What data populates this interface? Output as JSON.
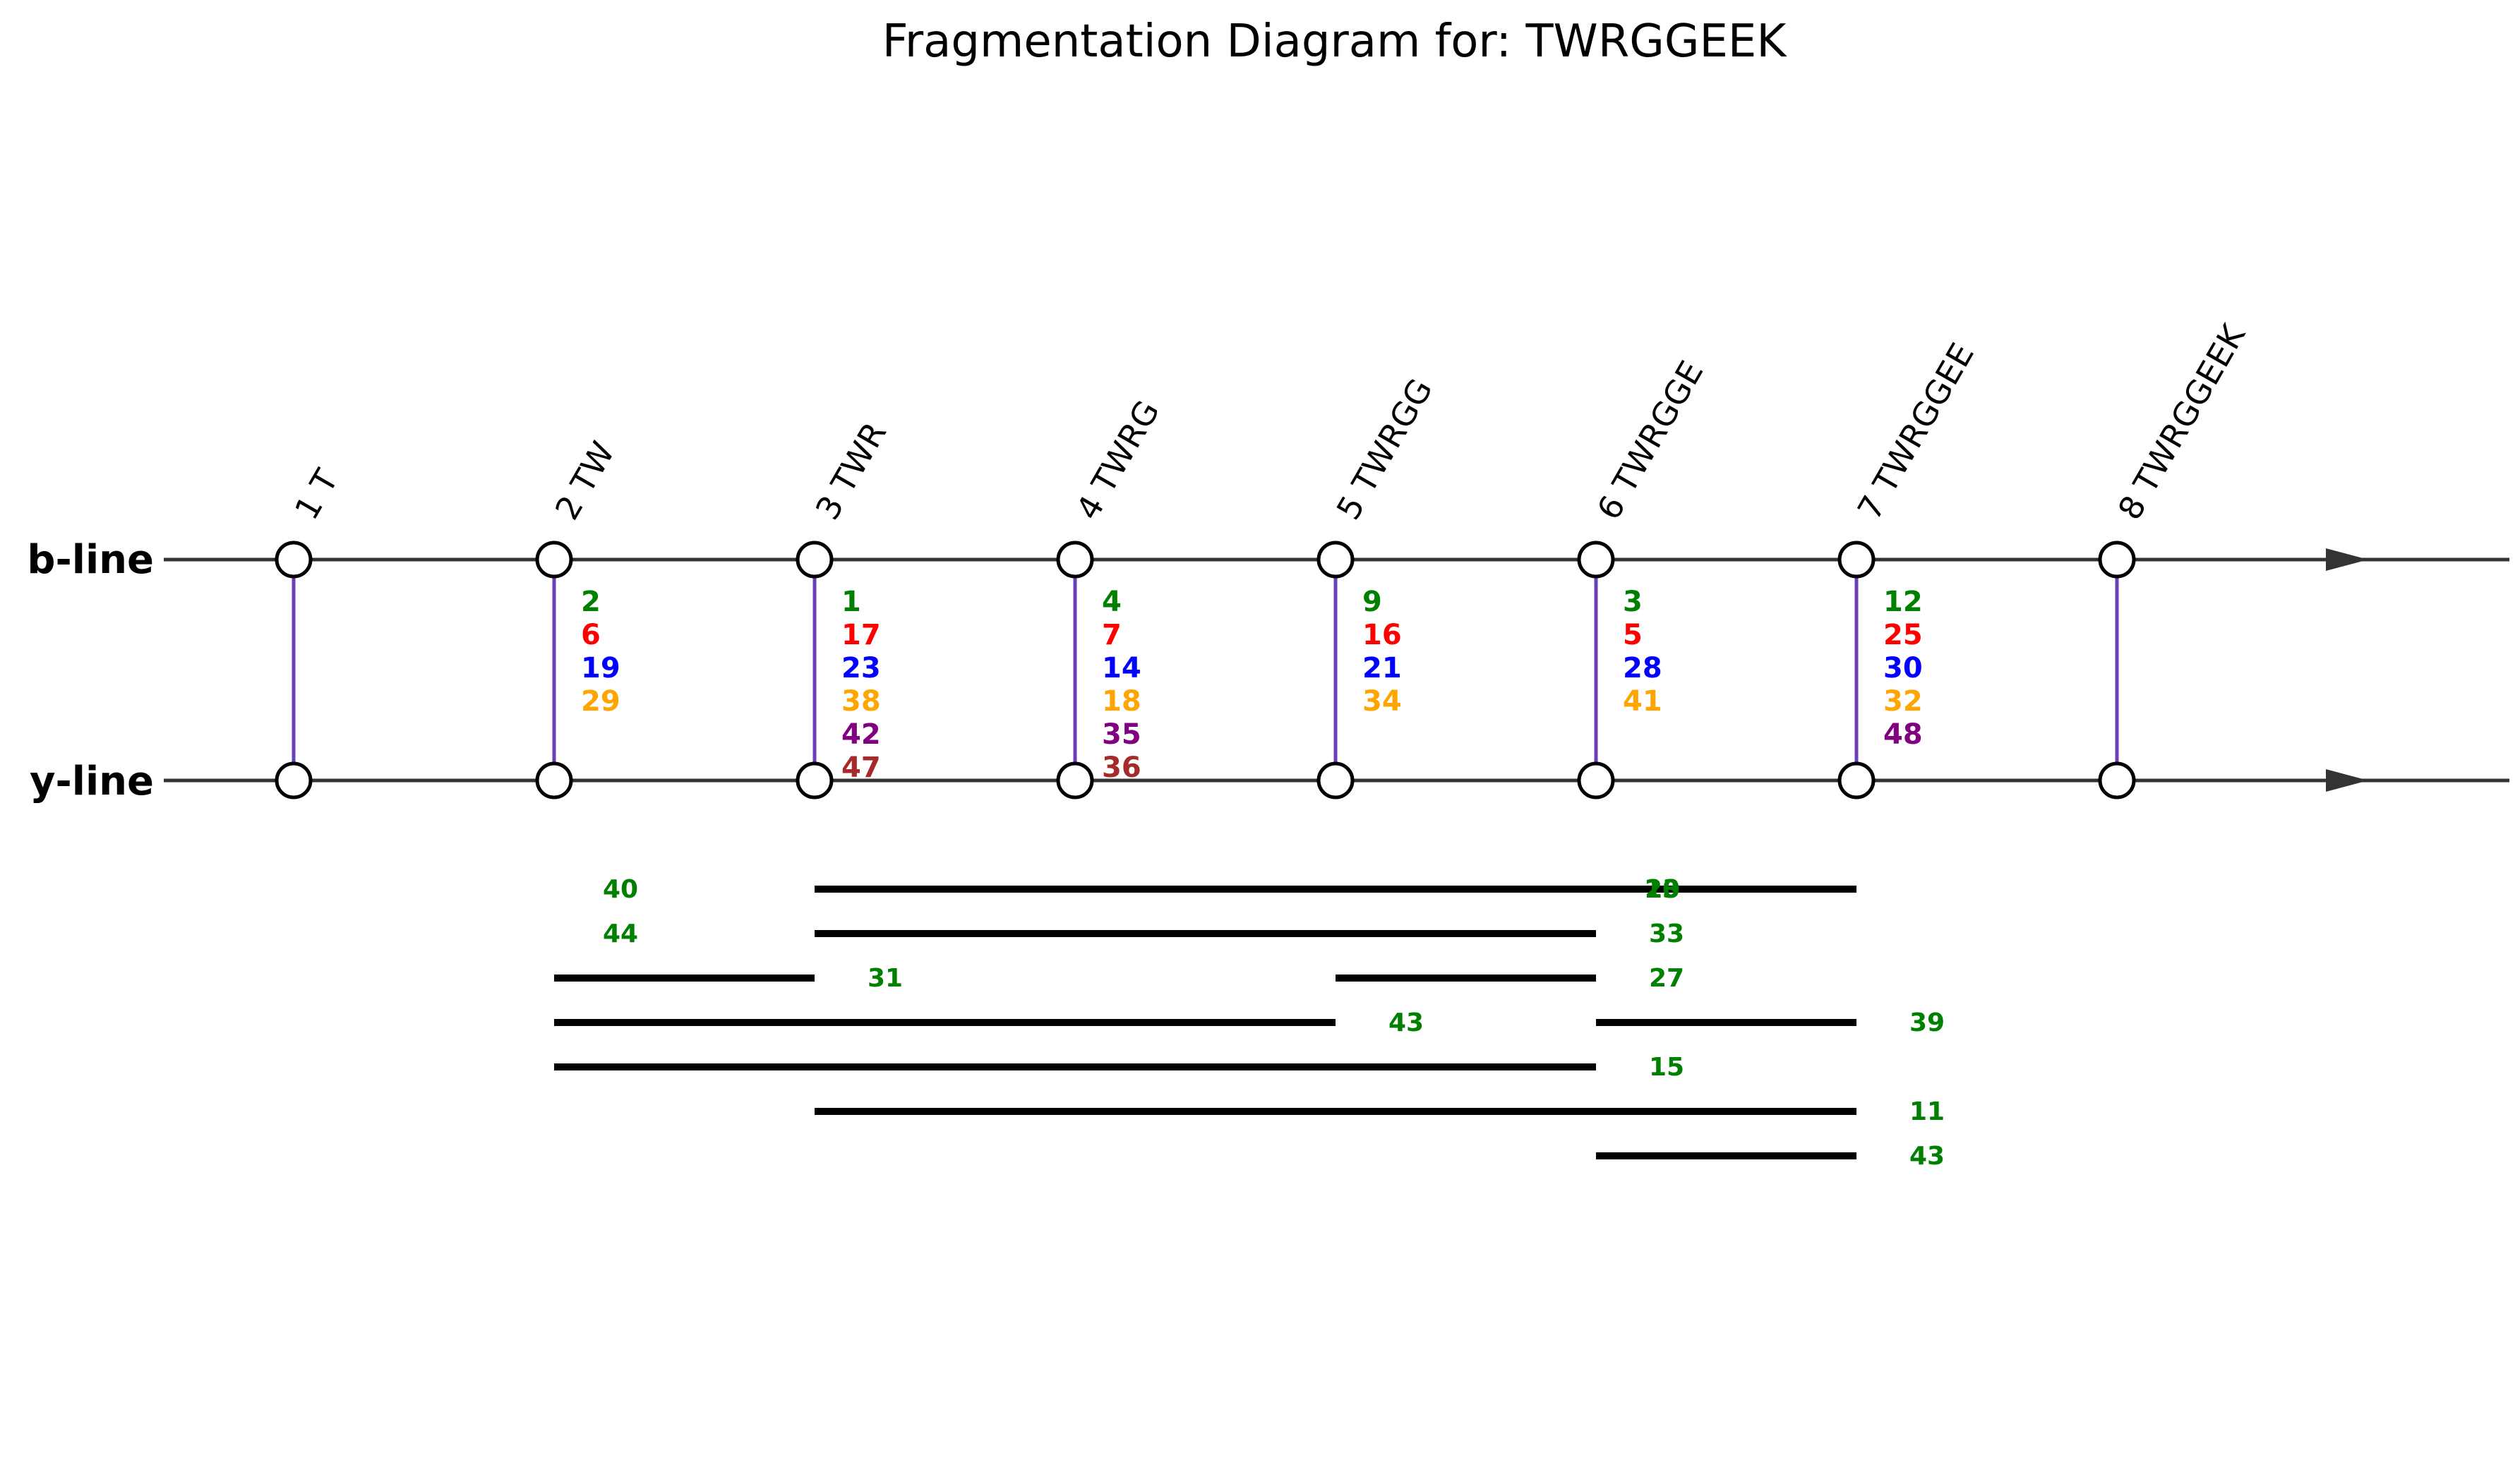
{
  "title": "Fragmentation Diagram for: TWRGGEEK",
  "b_line_label": "b-line",
  "y_line_label": "y-line",
  "fragments": [
    "1 T",
    "2 TW",
    "3 TWR",
    "4 TWRG",
    "5 TWRGG",
    "6 TWRGGE",
    "7 TWRGGEE",
    "8 TWRGGEEK"
  ],
  "colors": {
    "c1": "#008000",
    "c2": "#ff0000",
    "c3": "#0000ff",
    "c4": "#ffa500",
    "c5": "#800080",
    "c6": "#a52a2a",
    "link": "#6a3fb8",
    "axis": "#333333",
    "internal_label": "#008000"
  },
  "ion_matches": [
    {
      "position": 2,
      "numbers": [
        "2",
        "6",
        "19",
        "29"
      ]
    },
    {
      "position": 3,
      "numbers": [
        "1",
        "17",
        "23",
        "38",
        "42",
        "47"
      ]
    },
    {
      "position": 4,
      "numbers": [
        "4",
        "7",
        "14",
        "18",
        "35",
        "36"
      ]
    },
    {
      "position": 5,
      "numbers": [
        "9",
        "16",
        "21",
        "34"
      ]
    },
    {
      "position": 6,
      "numbers": [
        "3",
        "5",
        "28",
        "41"
      ]
    },
    {
      "position": 7,
      "numbers": [
        "12",
        "25",
        "30",
        "32",
        "48"
      ]
    }
  ],
  "internal_fragments": [
    {
      "row": 1,
      "start": 3,
      "end": 7,
      "label": "40",
      "label_side": "left"
    },
    {
      "row": 1,
      "start": 3,
      "end": 7,
      "label": "20",
      "label_side": "right-inner"
    },
    {
      "row": 1,
      "start": 3,
      "end": 7,
      "label": "13",
      "label_side": "right-inner"
    },
    {
      "row": 2,
      "start": 3,
      "end": 6,
      "label": "44",
      "label_side": "left"
    },
    {
      "row": 2,
      "start": 3,
      "end": 6,
      "label": "33",
      "label_side": "right"
    },
    {
      "row": 3,
      "start": 2,
      "end": 3,
      "label": "31",
      "label_side": "right"
    },
    {
      "row": 3,
      "start": 5,
      "end": 6,
      "label": "27",
      "label_side": "right"
    },
    {
      "row": 4,
      "start": 2,
      "end": 5,
      "label": "43",
      "label_side": "right"
    },
    {
      "row": 4,
      "start": 6,
      "end": 7,
      "label": "39",
      "label_side": "right"
    },
    {
      "row": 5,
      "start": 2,
      "end": 6,
      "label": "15",
      "label_side": "right"
    },
    {
      "row": 6,
      "start": 3,
      "end": 7,
      "label": "11",
      "label_side": "right"
    },
    {
      "row": 7,
      "start": 6,
      "end": 7,
      "label": "43",
      "label_side": "right"
    }
  ]
}
